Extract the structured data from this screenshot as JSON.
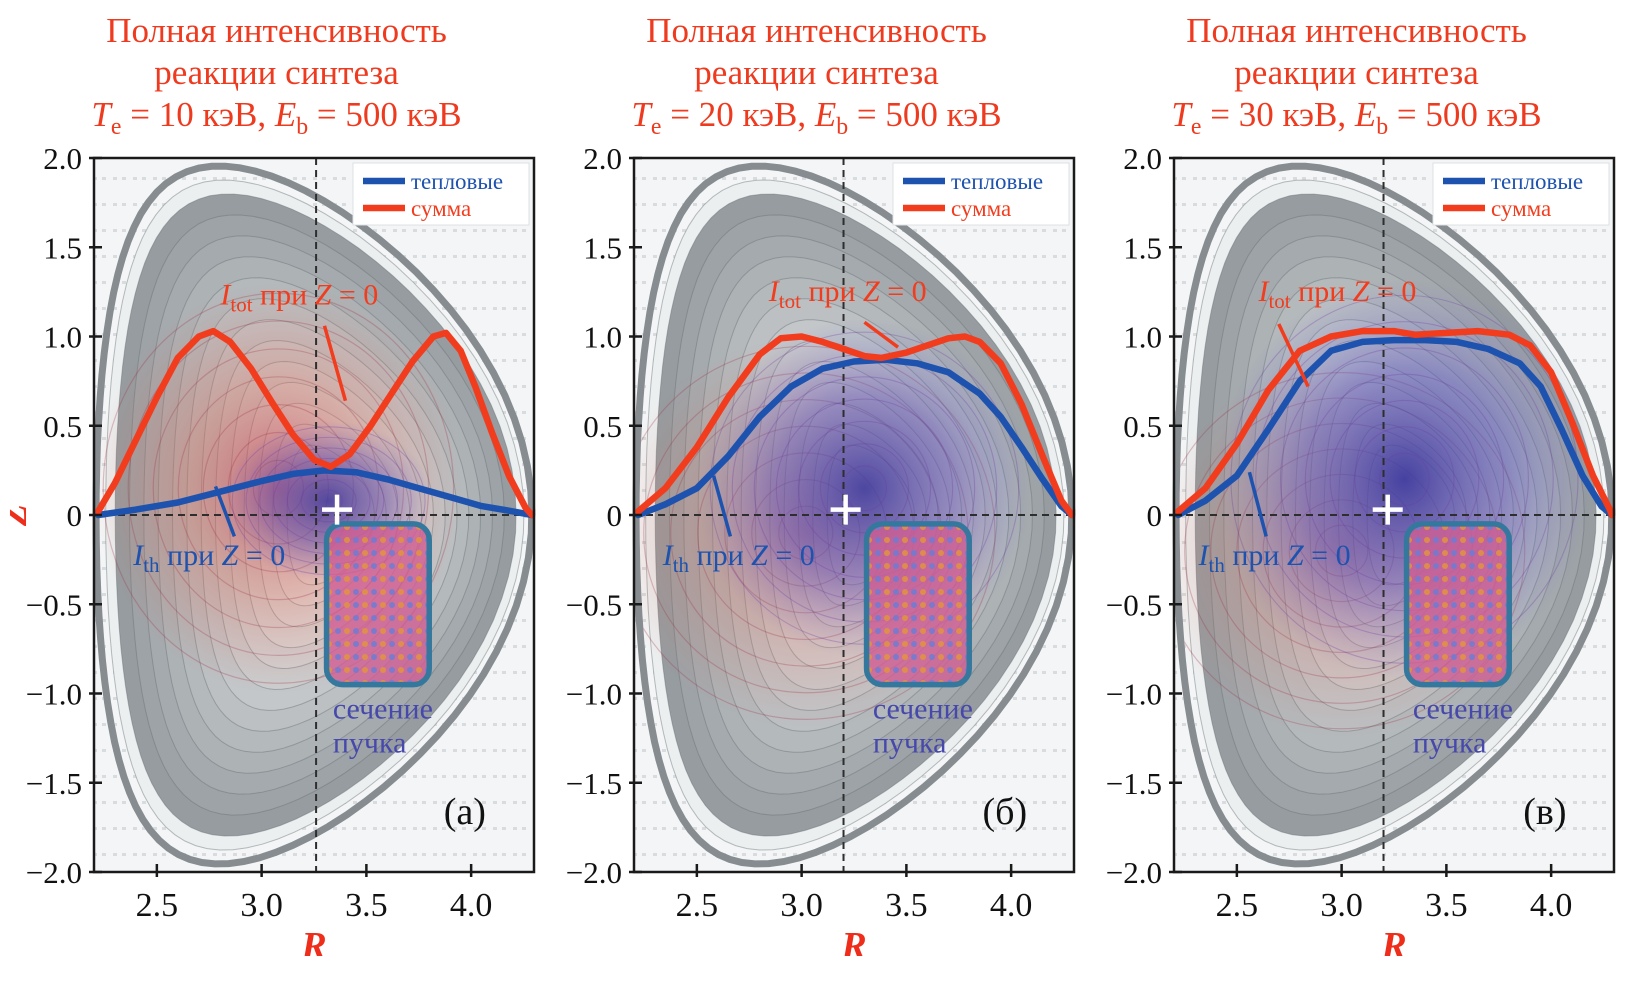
{
  "figure": {
    "colors": {
      "title": "#ee3b20",
      "axis_label": "#ee2e1b",
      "thermal": "#1d53ae",
      "sum": "#f23c1e",
      "boundary": "#878c90",
      "beam_outline": "#35789e",
      "beam_label": "#4648ab",
      "frame": "#1a1a1a",
      "plot_bg": "#f3f5f6",
      "grid_dot": "#d9dcde",
      "dashed_line": "#2e2e2e",
      "letter": "#111111"
    },
    "legend": {
      "position": "top-right",
      "items": [
        {
          "label": "тепловые",
          "color": "#1d53ae"
        },
        {
          "label": "сумма",
          "color": "#f23c1e"
        }
      ]
    },
    "panels": [
      {
        "title_lines": [
          "Полная интенсивность",
          "реакции синтеза"
        ],
        "subtitle_segments": [
          {
            "t": "T",
            "s": "i"
          },
          {
            "t": "e",
            "s": "sub"
          },
          {
            "t": " = 10 кэВ, ",
            "s": ""
          },
          {
            "t": "E",
            "s": "i"
          },
          {
            "t": "b",
            "s": "sub"
          },
          {
            "t": " = 500 кэВ",
            "s": ""
          }
        ]
      },
      {
        "title_lines": [
          "Полная интенсивность",
          "реакции синтеза"
        ],
        "subtitle_segments": [
          {
            "t": "T",
            "s": "i"
          },
          {
            "t": "e",
            "s": "sub"
          },
          {
            "t": " = 20 кэВ, ",
            "s": ""
          },
          {
            "t": "E",
            "s": "i"
          },
          {
            "t": "b",
            "s": "sub"
          },
          {
            "t": " = 500 кэВ",
            "s": ""
          }
        ]
      },
      {
        "title_lines": [
          "Полная интенсивность",
          "реакции синтеза"
        ],
        "subtitle_segments": [
          {
            "t": "T",
            "s": "i"
          },
          {
            "t": "e",
            "s": "sub"
          },
          {
            "t": " = 30 кэВ, ",
            "s": ""
          },
          {
            "t": "E",
            "s": "i"
          },
          {
            "t": "b",
            "s": "sub"
          },
          {
            "t": " = 500 кэВ",
            "s": ""
          }
        ]
      }
    ]
  },
  "chart_data": [
    {
      "type": "line",
      "panel": "(а)",
      "letter_at": [
        3.97,
        -1.73
      ],
      "title": "Полная интенсивность реакции синтеза",
      "subtitle": "T_e = 10 кэВ, E_b = 500 кэВ",
      "xlabel": "R",
      "ylabel": "Z",
      "xlim": [
        2.2,
        4.3
      ],
      "ylim": [
        -2,
        2
      ],
      "xticks": [
        "2.5",
        "3.0",
        "3.5",
        "4.0"
      ],
      "xtick_values": [
        2.5,
        3.0,
        3.5,
        4.0
      ],
      "yticks": [
        "2.0",
        "1.5",
        "1.0",
        "0.5",
        "0",
        "−0.5",
        "−1.0",
        "−1.5",
        "−2.0"
      ],
      "ytick_values": [
        2,
        1.5,
        1,
        0.5,
        0,
        -0.5,
        -1,
        -1.5,
        -2
      ],
      "grid": "dotted",
      "legend_position": "top-right",
      "boundary": {
        "R0": 3.25,
        "a": 1.04,
        "kappa": 1.88,
        "delta": 0.45,
        "shafranov_shift": 0.1
      },
      "dashed_axis_R": 3.26,
      "magnetic_axis": {
        "R": 3.36,
        "Z": 0.03
      },
      "beam_cross_section": {
        "R": [
          3.31,
          3.8
        ],
        "Z": [
          -0.95,
          -0.05
        ]
      },
      "clouds": {
        "beam_target": {
          "cx": 3.08,
          "cy": 0.15,
          "rx": 0.88,
          "ry": 1.15,
          "opacity": 0.8
        },
        "thermal": {
          "cx": 3.32,
          "cy": 0.08,
          "rx": 0.5,
          "ry": 0.45,
          "opacity": 0.9
        }
      },
      "series": [
        {
          "name": "тепловые",
          "role": "thermal",
          "color": "#1d53ae",
          "points": [
            [
              2.22,
              0.0
            ],
            [
              2.4,
              0.03
            ],
            [
              2.6,
              0.07
            ],
            [
              2.8,
              0.13
            ],
            [
              3.0,
              0.19
            ],
            [
              3.15,
              0.23
            ],
            [
              3.3,
              0.25
            ],
            [
              3.45,
              0.24
            ],
            [
              3.6,
              0.2
            ],
            [
              3.75,
              0.15
            ],
            [
              3.9,
              0.1
            ],
            [
              4.05,
              0.05
            ],
            [
              4.2,
              0.02
            ],
            [
              4.29,
              0.0
            ]
          ]
        },
        {
          "name": "сумма",
          "role": "sum",
          "color": "#f23c1e",
          "points": [
            [
              2.22,
              0.02
            ],
            [
              2.3,
              0.18
            ],
            [
              2.4,
              0.42
            ],
            [
              2.5,
              0.66
            ],
            [
              2.6,
              0.88
            ],
            [
              2.7,
              1.0
            ],
            [
              2.77,
              1.03
            ],
            [
              2.85,
              0.97
            ],
            [
              2.95,
              0.82
            ],
            [
              3.05,
              0.63
            ],
            [
              3.15,
              0.45
            ],
            [
              3.25,
              0.31
            ],
            [
              3.33,
              0.27
            ],
            [
              3.42,
              0.34
            ],
            [
              3.52,
              0.5
            ],
            [
              3.62,
              0.68
            ],
            [
              3.72,
              0.86
            ],
            [
              3.82,
              1.0
            ],
            [
              3.88,
              1.02
            ],
            [
              3.95,
              0.92
            ],
            [
              4.02,
              0.72
            ],
            [
              4.1,
              0.46
            ],
            [
              4.18,
              0.22
            ],
            [
              4.26,
              0.04
            ],
            [
              4.29,
              0.0
            ]
          ]
        }
      ],
      "annotations": {
        "itot": {
          "parts": {
            "sym": "I",
            "sub": "tot",
            "mid": " при ",
            "var": "Z",
            "eq": " = 0"
          },
          "at": [
            3.18,
            1.18
          ],
          "leader": [
            [
              3.3,
              1.06
            ],
            [
              3.4,
              0.64
            ]
          ]
        },
        "ith": {
          "parts": {
            "sym": "I",
            "sub": "th",
            "mid": " при ",
            "var": "Z",
            "eq": " = 0"
          },
          "at": [
            2.75,
            -0.28
          ],
          "leader": [
            [
              2.78,
              0.16
            ],
            [
              2.87,
              -0.12
            ]
          ]
        },
        "beam_label": {
          "lines": [
            "сечение",
            "пучка"
          ],
          "at": [
            3.34,
            -1.14
          ]
        }
      }
    },
    {
      "type": "line",
      "panel": "(б)",
      "letter_at": [
        3.97,
        -1.73
      ],
      "title": "Полная интенсивность реакции синтеза",
      "subtitle": "T_e = 20 кэВ, E_b = 500 кэВ",
      "xlabel": "R",
      "ylabel": "Z",
      "xlim": [
        2.2,
        4.3
      ],
      "ylim": [
        -2,
        2
      ],
      "xticks": [
        "2.5",
        "3.0",
        "3.5",
        "4.0"
      ],
      "xtick_values": [
        2.5,
        3.0,
        3.5,
        4.0
      ],
      "yticks": [
        "2.0",
        "1.5",
        "1.0",
        "0.5",
        "0",
        "−0.5",
        "−1.0",
        "−1.5",
        "−2.0"
      ],
      "ytick_values": [
        2,
        1.5,
        1,
        0.5,
        0,
        -0.5,
        -1,
        -1.5,
        -2
      ],
      "grid": "dotted",
      "legend_position": "top-right",
      "boundary": {
        "R0": 3.25,
        "a": 1.04,
        "kappa": 1.88,
        "delta": 0.45,
        "shafranov_shift": 0.1
      },
      "dashed_axis_R": 3.2,
      "magnetic_axis": {
        "R": 3.21,
        "Z": 0.03
      },
      "beam_cross_section": {
        "R": [
          3.31,
          3.8
        ],
        "Z": [
          -0.95,
          -0.05
        ]
      },
      "clouds": {
        "beam_target": {
          "cx": 3.02,
          "cy": -0.1,
          "rx": 0.95,
          "ry": 1.1,
          "opacity": 0.55
        },
        "thermal": {
          "cx": 3.3,
          "cy": 0.15,
          "rx": 0.8,
          "ry": 0.95,
          "opacity": 0.95
        }
      },
      "series": [
        {
          "name": "тепловые",
          "role": "thermal",
          "color": "#1d53ae",
          "points": [
            [
              2.22,
              0.0
            ],
            [
              2.35,
              0.06
            ],
            [
              2.5,
              0.15
            ],
            [
              2.65,
              0.33
            ],
            [
              2.8,
              0.55
            ],
            [
              2.95,
              0.72
            ],
            [
              3.1,
              0.82
            ],
            [
              3.25,
              0.86
            ],
            [
              3.4,
              0.87
            ],
            [
              3.55,
              0.85
            ],
            [
              3.7,
              0.8
            ],
            [
              3.85,
              0.68
            ],
            [
              3.95,
              0.55
            ],
            [
              4.05,
              0.38
            ],
            [
              4.15,
              0.2
            ],
            [
              4.24,
              0.05
            ],
            [
              4.29,
              0.0
            ]
          ]
        },
        {
          "name": "сумма",
          "role": "sum",
          "color": "#f23c1e",
          "points": [
            [
              2.22,
              0.02
            ],
            [
              2.35,
              0.15
            ],
            [
              2.5,
              0.38
            ],
            [
              2.65,
              0.66
            ],
            [
              2.8,
              0.9
            ],
            [
              2.9,
              0.99
            ],
            [
              3.0,
              1.0
            ],
            [
              3.1,
              0.97
            ],
            [
              3.2,
              0.93
            ],
            [
              3.3,
              0.89
            ],
            [
              3.38,
              0.88
            ],
            [
              3.5,
              0.91
            ],
            [
              3.6,
              0.95
            ],
            [
              3.7,
              0.99
            ],
            [
              3.78,
              1.0
            ],
            [
              3.85,
              0.97
            ],
            [
              3.95,
              0.85
            ],
            [
              4.05,
              0.62
            ],
            [
              4.15,
              0.33
            ],
            [
              4.24,
              0.08
            ],
            [
              4.29,
              0.0
            ]
          ]
        }
      ],
      "annotations": {
        "itot": {
          "parts": {
            "sym": "I",
            "sub": "tot",
            "mid": " при ",
            "var": "Z",
            "eq": " = 0"
          },
          "at": [
            3.22,
            1.2
          ],
          "leader": [
            [
              3.3,
              1.08
            ],
            [
              3.46,
              0.94
            ]
          ]
        },
        "ith": {
          "parts": {
            "sym": "I",
            "sub": "th",
            "mid": " при ",
            "var": "Z",
            "eq": " = 0"
          },
          "at": [
            2.7,
            -0.28
          ],
          "leader": [
            [
              2.58,
              0.22
            ],
            [
              2.66,
              -0.12
            ]
          ]
        },
        "beam_label": {
          "lines": [
            "сечение",
            "пучка"
          ],
          "at": [
            3.34,
            -1.14
          ]
        }
      }
    },
    {
      "type": "line",
      "panel": "(в)",
      "letter_at": [
        3.97,
        -1.73
      ],
      "title": "Полная интенсивность реакции синтеза",
      "subtitle": "T_e = 30 кэВ, E_b = 500 кэВ",
      "xlabel": "R",
      "ylabel": "Z",
      "xlim": [
        2.2,
        4.3
      ],
      "ylim": [
        -2,
        2
      ],
      "xticks": [
        "2.5",
        "3.0",
        "3.5",
        "4.0"
      ],
      "xtick_values": [
        2.5,
        3.0,
        3.5,
        4.0
      ],
      "yticks": [
        "2.0",
        "1.5",
        "1.0",
        "0.5",
        "0",
        "−0.5",
        "−1.0",
        "−1.5",
        "−2.0"
      ],
      "ytick_values": [
        2,
        1.5,
        1,
        0.5,
        0,
        -0.5,
        -1,
        -1.5,
        -2
      ],
      "grid": "dotted",
      "legend_position": "top-right",
      "boundary": {
        "R0": 3.25,
        "a": 1.04,
        "kappa": 1.88,
        "delta": 0.45,
        "shafranov_shift": 0.1
      },
      "dashed_axis_R": 3.2,
      "magnetic_axis": {
        "R": 3.22,
        "Z": 0.03
      },
      "beam_cross_section": {
        "R": [
          3.31,
          3.8
        ],
        "Z": [
          -0.95,
          -0.05
        ]
      },
      "clouds": {
        "beam_target": {
          "cx": 3.0,
          "cy": -0.2,
          "rx": 0.92,
          "ry": 1.05,
          "opacity": 0.5
        },
        "thermal": {
          "cx": 3.3,
          "cy": 0.2,
          "rx": 0.9,
          "ry": 1.12,
          "opacity": 1.0
        }
      },
      "series": [
        {
          "name": "тепловые",
          "role": "thermal",
          "color": "#1d53ae",
          "points": [
            [
              2.22,
              0.0
            ],
            [
              2.35,
              0.08
            ],
            [
              2.5,
              0.22
            ],
            [
              2.65,
              0.48
            ],
            [
              2.8,
              0.75
            ],
            [
              2.95,
              0.92
            ],
            [
              3.1,
              0.97
            ],
            [
              3.25,
              0.98
            ],
            [
              3.4,
              0.98
            ],
            [
              3.55,
              0.97
            ],
            [
              3.7,
              0.93
            ],
            [
              3.85,
              0.85
            ],
            [
              3.95,
              0.72
            ],
            [
              4.05,
              0.48
            ],
            [
              4.15,
              0.22
            ],
            [
              4.24,
              0.05
            ],
            [
              4.29,
              0.0
            ]
          ]
        },
        {
          "name": "сумма",
          "role": "sum",
          "color": "#f23c1e",
          "points": [
            [
              2.22,
              0.02
            ],
            [
              2.35,
              0.15
            ],
            [
              2.5,
              0.4
            ],
            [
              2.65,
              0.7
            ],
            [
              2.8,
              0.92
            ],
            [
              2.95,
              1.0
            ],
            [
              3.1,
              1.03
            ],
            [
              3.25,
              1.03
            ],
            [
              3.35,
              1.01
            ],
            [
              3.5,
              1.02
            ],
            [
              3.65,
              1.03
            ],
            [
              3.8,
              1.01
            ],
            [
              3.9,
              0.95
            ],
            [
              4.0,
              0.8
            ],
            [
              4.1,
              0.52
            ],
            [
              4.2,
              0.22
            ],
            [
              4.28,
              0.03
            ],
            [
              4.29,
              0.0
            ]
          ]
        }
      ],
      "annotations": {
        "itot": {
          "parts": {
            "sym": "I",
            "sub": "tot",
            "mid": " при ",
            "var": "Z",
            "eq": " = 0"
          },
          "at": [
            2.98,
            1.2
          ],
          "leader": [
            [
              2.7,
              1.07
            ],
            [
              2.84,
              0.72
            ]
          ]
        },
        "ith": {
          "parts": {
            "sym": "I",
            "sub": "th",
            "mid": " при ",
            "var": "Z",
            "eq": " = 0"
          },
          "at": [
            2.68,
            -0.28
          ],
          "leader": [
            [
              2.56,
              0.24
            ],
            [
              2.64,
              -0.12
            ]
          ]
        },
        "beam_label": {
          "lines": [
            "сечение",
            "пучка"
          ],
          "at": [
            3.34,
            -1.14
          ]
        }
      }
    }
  ]
}
